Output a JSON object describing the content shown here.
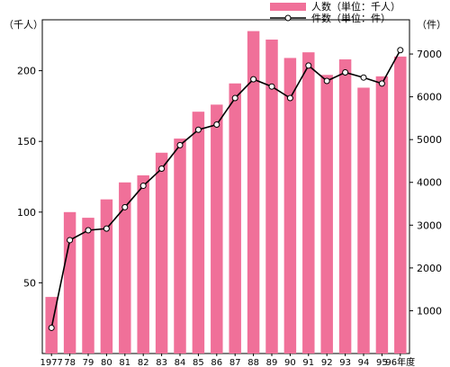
{
  "chart_data": {
    "type": "bar+line",
    "categories": [
      "1977",
      "78",
      "79",
      "80",
      "81",
      "82",
      "83",
      "84",
      "85",
      "86",
      "87",
      "88",
      "89",
      "90",
      "91",
      "92",
      "93",
      "94",
      "95",
      "96年度"
    ],
    "series": [
      {
        "name": "人数（単位：千人）",
        "kind": "bar",
        "axis": "left",
        "values": [
          40,
          100,
          96,
          109,
          121,
          126,
          142,
          152,
          171,
          176,
          191,
          228,
          222,
          209,
          213,
          197,
          208,
          188,
          196,
          210
        ]
      },
      {
        "name": "件数（単位：件）",
        "kind": "line",
        "axis": "right",
        "values": [
          600,
          2650,
          2880,
          2920,
          3420,
          3920,
          4320,
          4870,
          5230,
          5350,
          5970,
          6410,
          6240,
          5970,
          6730,
          6370,
          6570,
          6450,
          6310,
          7090
        ]
      }
    ],
    "left_axis": {
      "unit": "（千人）",
      "ticks": [
        50,
        100,
        150,
        200
      ],
      "ylim": [
        0,
        236
      ]
    },
    "right_axis": {
      "unit": "（件）",
      "ticks": [
        1000,
        2000,
        3000,
        4000,
        5000,
        6000,
        7000
      ],
      "ylim": [
        0,
        7800
      ]
    },
    "colors": {
      "bar": "#f07099",
      "line": "#000000",
      "marker_fill": "#ffffff"
    },
    "legend_position": "top-right",
    "grid": false
  }
}
